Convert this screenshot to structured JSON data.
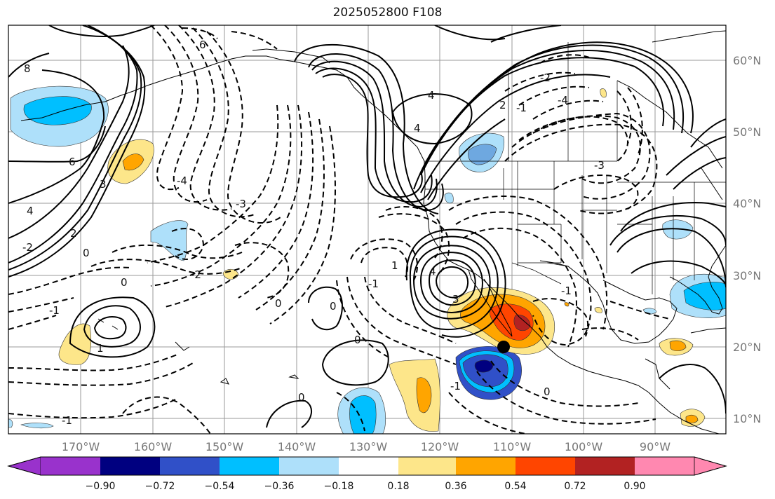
{
  "title": "2025052800 F108",
  "lat_labels": [
    "60°N",
    "50°N",
    "40°N",
    "30°N",
    "20°N",
    "10°N"
  ],
  "lon_labels": [
    "170°W",
    "160°W",
    "150°W",
    "140°W",
    "130°W",
    "120°W",
    "110°W",
    "100°W",
    "90°W"
  ],
  "colorbar": {
    "ticks": [
      "−0.90",
      "−0.72",
      "−0.54",
      "−0.36",
      "−0.18",
      "0.18",
      "0.36",
      "0.54",
      "0.72",
      "0.90"
    ],
    "colors": [
      "#9932cc",
      "#000080",
      "#3050c8",
      "#00bfff",
      "#aee0fa",
      "#ffffff",
      "#fde68a",
      "#ffa500",
      "#ff4500",
      "#b22222",
      "#ff88b0"
    ]
  },
  "contour_labels": [
    "6",
    "4",
    "2",
    "-2",
    "-3",
    "-4",
    "8",
    "6",
    "3",
    "4",
    "-4",
    "-2",
    "0",
    "1",
    "-1",
    "0",
    "4",
    "-1",
    "-3",
    "-2",
    "0",
    "-1",
    "3",
    "2",
    "4",
    "0",
    "-1",
    "0",
    "0",
    "1",
    "-1",
    "-1",
    "0"
  ],
  "marker": "black-dot"
}
